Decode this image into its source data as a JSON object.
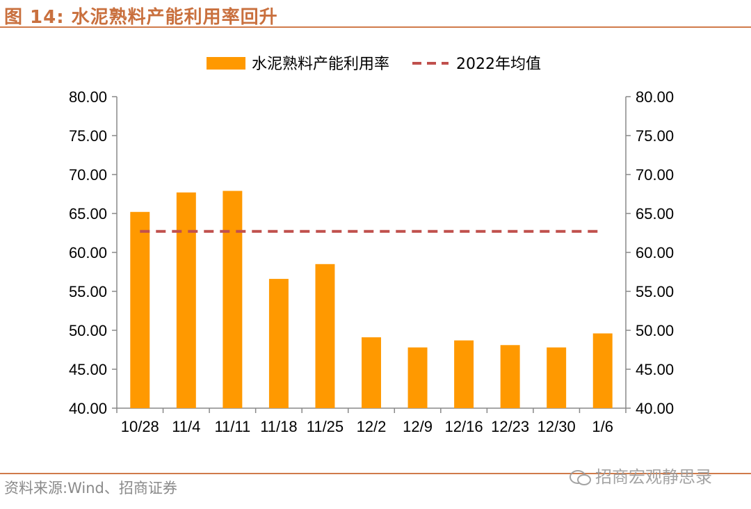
{
  "figure": {
    "title": "图 14:  水泥熟料产能利用率回升",
    "source": "资料来源:Wind、招商证券",
    "watermark": "招商宏观静思录"
  },
  "chart_data": {
    "type": "bar",
    "categories": [
      "10/28",
      "11/4",
      "11/11",
      "11/18",
      "11/25",
      "12/2",
      "12/9",
      "12/16",
      "12/23",
      "12/30",
      "1/6"
    ],
    "series": [
      {
        "name": "水泥熟料产能利用率",
        "kind": "bar",
        "color": "#ff9900",
        "values": [
          65.2,
          67.7,
          67.9,
          56.6,
          58.5,
          49.1,
          47.8,
          48.7,
          48.1,
          47.8,
          49.6
        ]
      },
      {
        "name": "2022年均值",
        "kind": "dashed-line",
        "color": "#c0504d",
        "values": [
          62.7,
          62.7,
          62.7,
          62.7,
          62.7,
          62.7,
          62.7,
          62.7,
          62.7,
          62.7,
          62.7
        ]
      }
    ],
    "ylim": [
      40,
      80
    ],
    "yticks": [
      "40.00",
      "45.00",
      "50.00",
      "55.00",
      "60.00",
      "65.00",
      "70.00",
      "75.00",
      "80.00"
    ],
    "y2ticks": [
      "40.00",
      "45.00",
      "50.00",
      "55.00",
      "60.00",
      "65.00",
      "70.00",
      "75.00",
      "80.00"
    ],
    "legend_position": "top",
    "grid": false
  }
}
